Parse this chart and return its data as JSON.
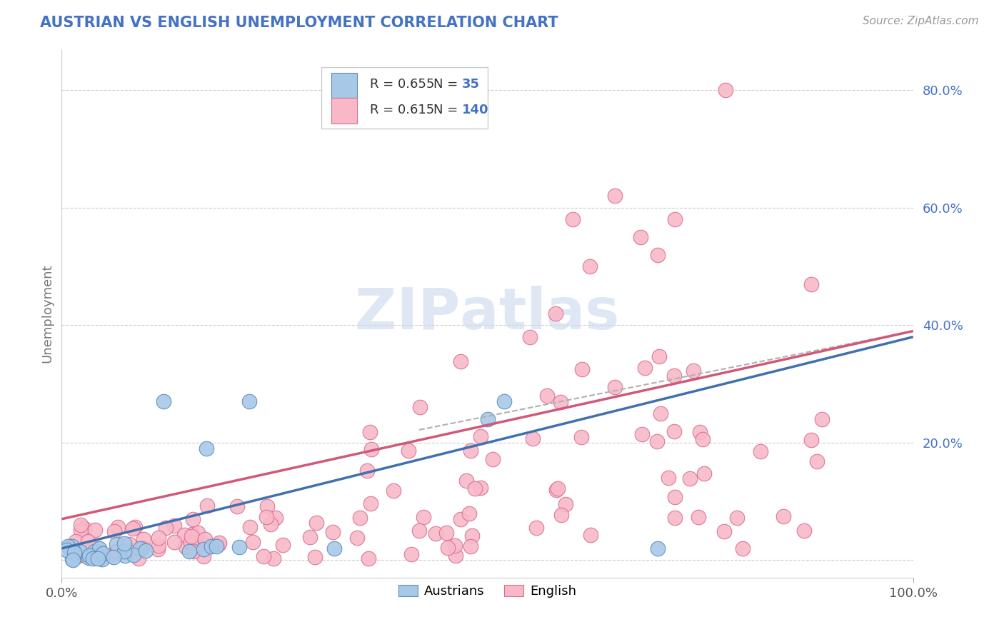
{
  "title": "AUSTRIAN VS ENGLISH UNEMPLOYMENT CORRELATION CHART",
  "source": "Source: ZipAtlas.com",
  "ylabel": "Unemployment",
  "xlim": [
    0.0,
    1.0
  ],
  "ylim": [
    -0.03,
    0.87
  ],
  "yticks": [
    0.0,
    0.2,
    0.4,
    0.6,
    0.8
  ],
  "watermark": "ZIPatlas",
  "legend_r1": "R = 0.655",
  "legend_n1": "N =  35",
  "legend_r2": "R = 0.615",
  "legend_n2": "N = 140",
  "color_austrians_face": "#a8c8e8",
  "color_austrians_edge": "#5b8db8",
  "color_english_face": "#f8b8c8",
  "color_english_edge": "#d87090",
  "color_blue_line": "#4070b0",
  "color_pink_line": "#d05878",
  "color_dashed_line": "#b0b0b0",
  "title_color": "#4472c4",
  "legend_text_color": "#333333",
  "legend_num_color": "#4472c4",
  "source_color": "#999999",
  "background_color": "#ffffff",
  "grid_color": "#cccccc",
  "ytick_color": "#4472c4",
  "xtick_color": "#555555",
  "aus_blue_line_start": 0.02,
  "aus_blue_line_end": 0.38,
  "eng_pink_line_start": 0.07,
  "eng_pink_line_end": 0.39,
  "dash_line_start": 0.1,
  "dash_line_end": 0.39
}
